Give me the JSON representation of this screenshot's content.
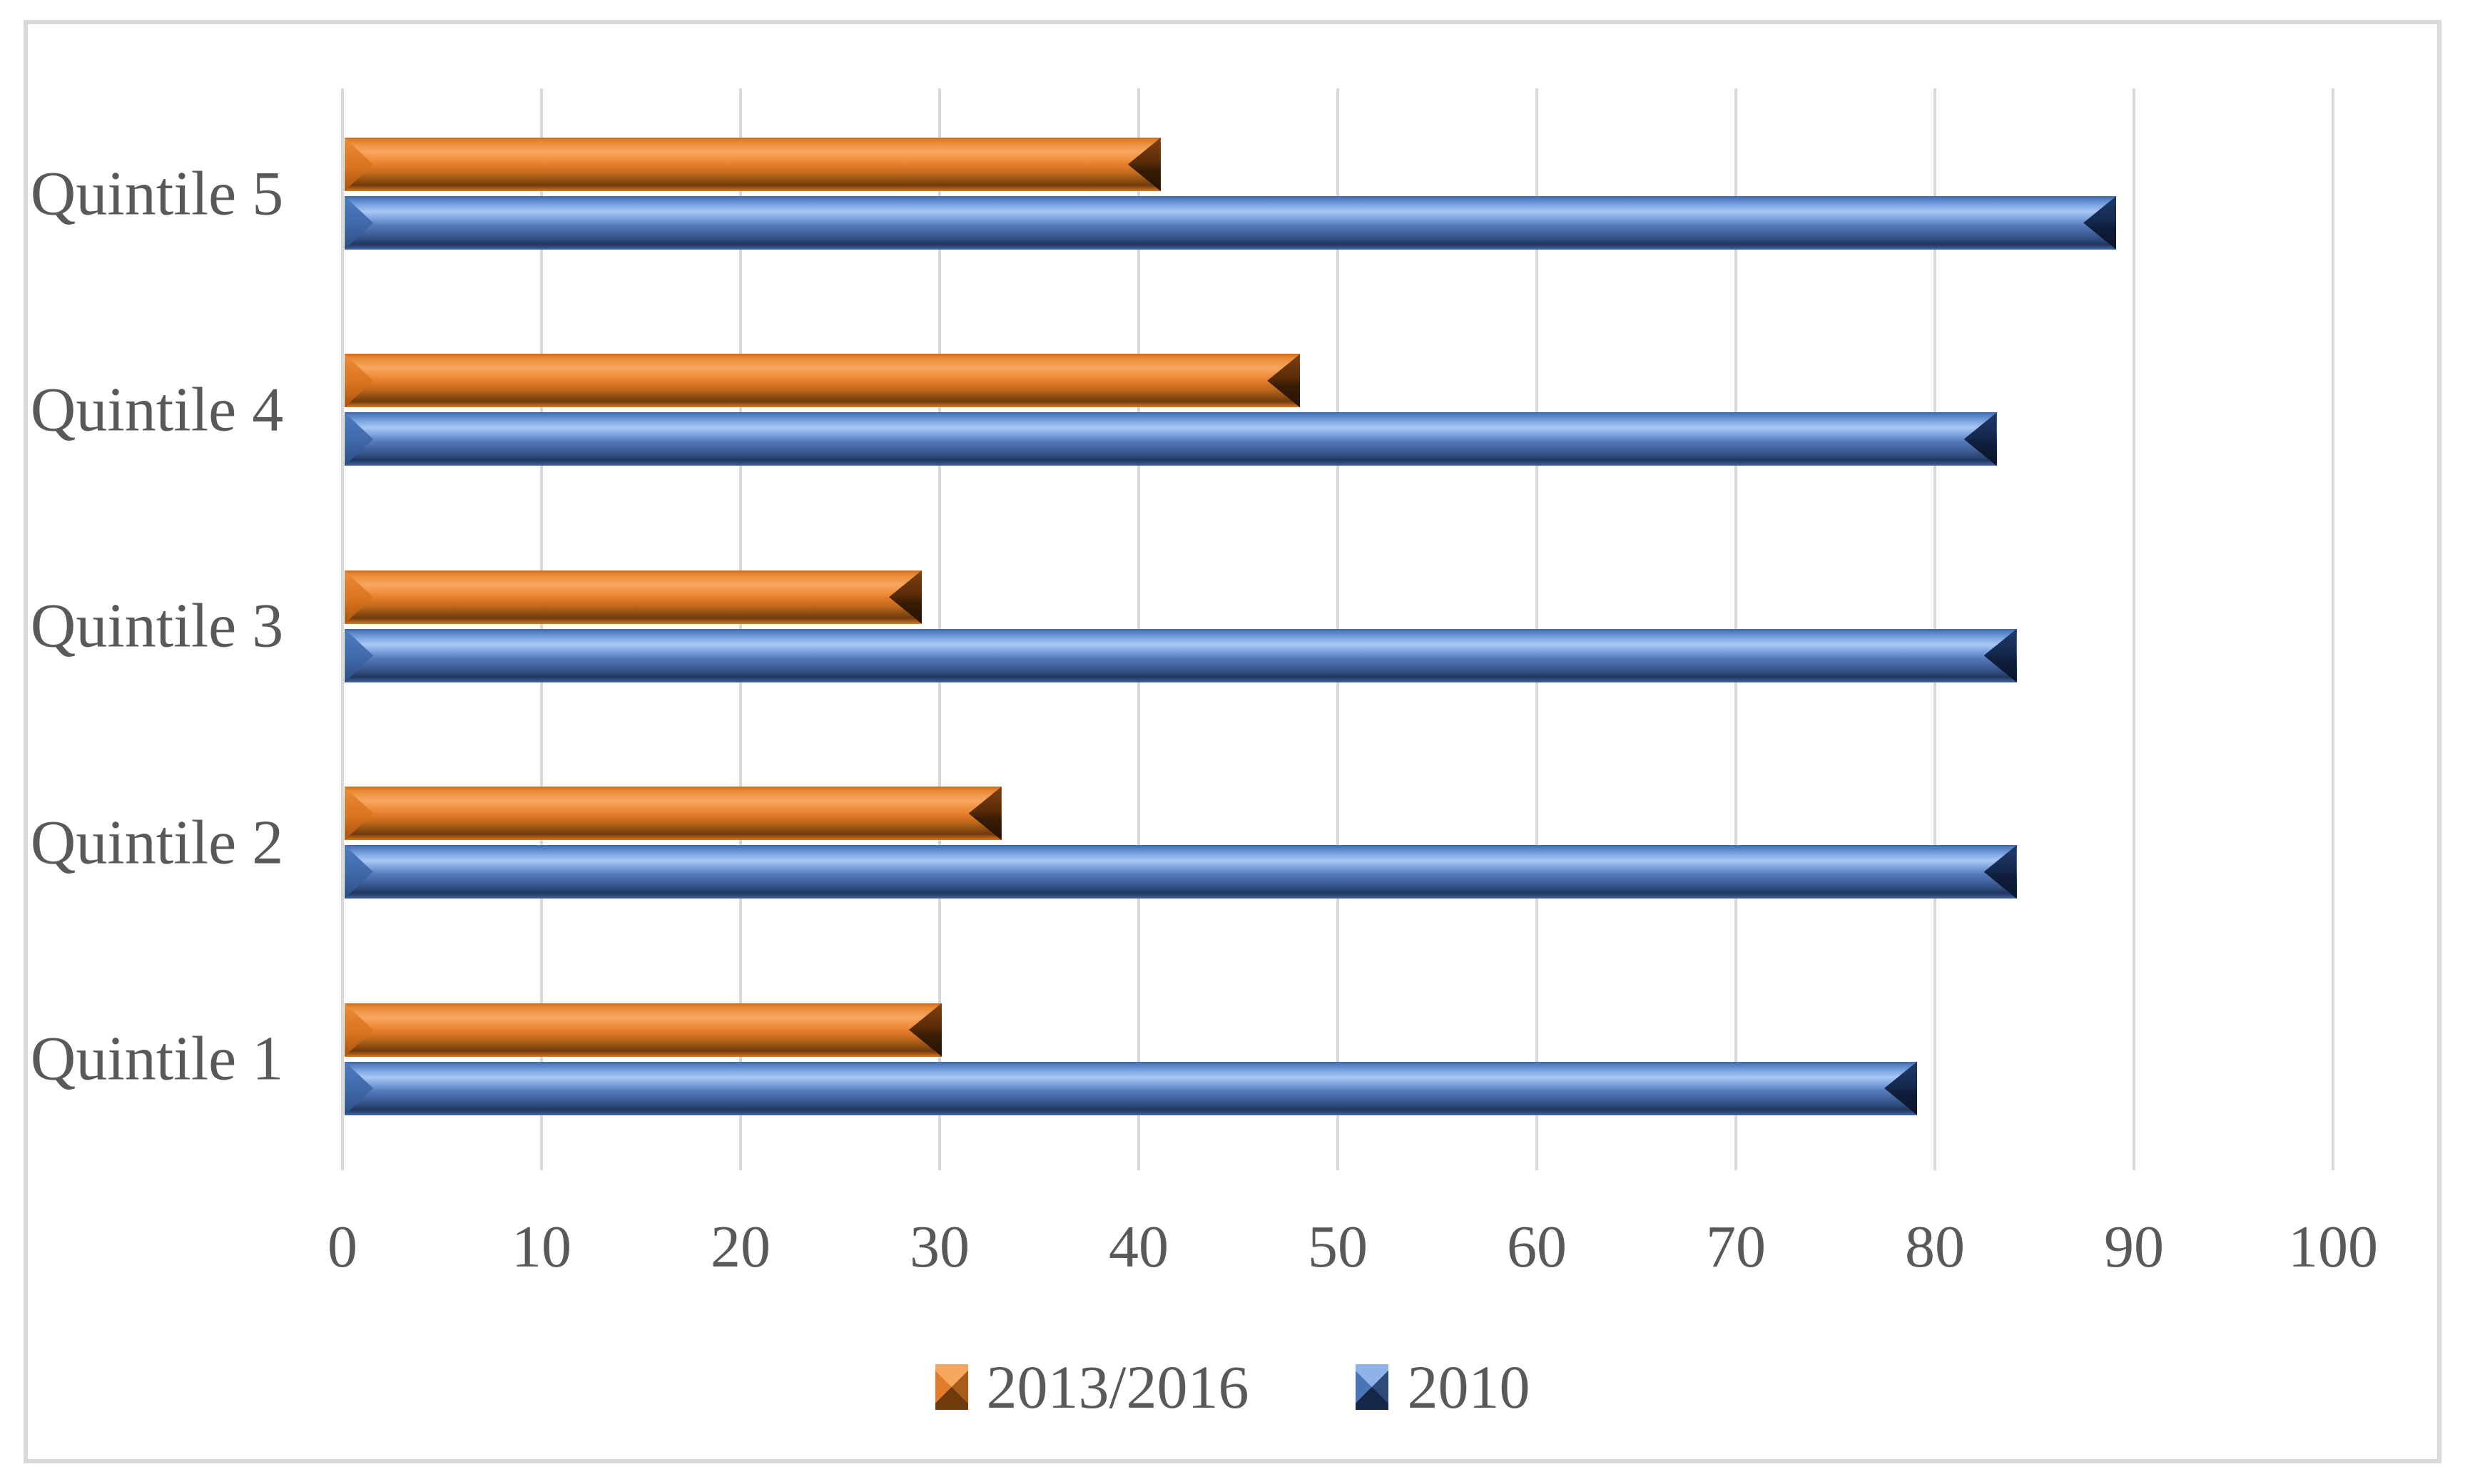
{
  "chart_data": {
    "type": "bar",
    "orientation": "horizontal",
    "title": "",
    "xlabel": "",
    "ylabel": "",
    "categories": [
      "Quintile 5",
      "Quintile 4",
      "Quintile 3",
      "Quintile 2",
      "Quintile 1"
    ],
    "series": [
      {
        "name": "2013/2016",
        "color": "#ED7D31",
        "values": [
          41,
          48,
          29,
          33,
          30
        ]
      },
      {
        "name": "2010",
        "color": "#4472C4",
        "values": [
          89,
          83,
          84,
          84,
          79
        ]
      }
    ],
    "xlim": [
      0,
      100
    ],
    "x_ticks": [
      0,
      10,
      20,
      30,
      40,
      50,
      60,
      70,
      80,
      90,
      100
    ],
    "grid": true,
    "legend_position": "bottom"
  },
  "legend": {
    "items": [
      {
        "label": "2013/2016"
      },
      {
        "label": "2010"
      }
    ]
  },
  "colors": {
    "series_2013_2016": "#ED7D31",
    "series_2010": "#4472C4",
    "text": "#595959",
    "gridline": "#D9D9D9",
    "frame_border": "#D9D9D9",
    "background": "#FFFFFF"
  }
}
